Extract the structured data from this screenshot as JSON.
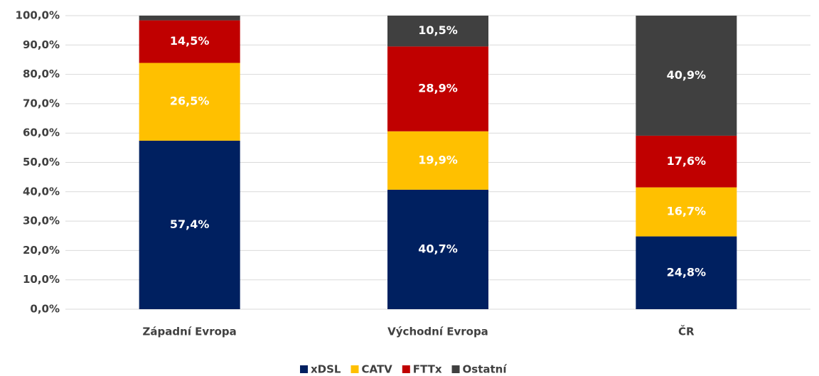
{
  "chart_data": {
    "type": "stacked_bar",
    "categories": [
      "Západní Evropa",
      "Východní Evropa",
      "ČR"
    ],
    "series": [
      {
        "name": "xDSL",
        "color": "#002060",
        "values": [
          57.4,
          40.7,
          24.8
        ],
        "value_labels": [
          "57,4%",
          "40,7%",
          "24,8%"
        ]
      },
      {
        "name": "CATV",
        "color": "#ffc000",
        "values": [
          26.5,
          19.9,
          16.7
        ],
        "value_labels": [
          "26,5%",
          "19,9%",
          "16,7%"
        ]
      },
      {
        "name": "FTTx",
        "color": "#c00000",
        "values": [
          14.5,
          28.9,
          17.6
        ],
        "value_labels": [
          "14,5%",
          "28,9%",
          "17,6%"
        ]
      },
      {
        "name": "Ostatní",
        "color": "#404040",
        "values": [
          1.6,
          10.5,
          40.9
        ],
        "value_labels": [
          null,
          "10,5%",
          "40,9%"
        ]
      }
    ],
    "ylim": [
      0,
      100
    ],
    "yticks": [
      {
        "value": 0,
        "label": "0,0%"
      },
      {
        "value": 10,
        "label": "10,0%"
      },
      {
        "value": 20,
        "label": "20,0%"
      },
      {
        "value": 30,
        "label": "30,0%"
      },
      {
        "value": 40,
        "label": "40,0%"
      },
      {
        "value": 50,
        "label": "50,0%"
      },
      {
        "value": 60,
        "label": "60,0%"
      },
      {
        "value": 70,
        "label": "70,0%"
      },
      {
        "value": 80,
        "label": "80,0%"
      },
      {
        "value": 90,
        "label": "90,0%"
      },
      {
        "value": 100,
        "label": "100,0%"
      }
    ],
    "grid": true,
    "legend": "bottom"
  }
}
